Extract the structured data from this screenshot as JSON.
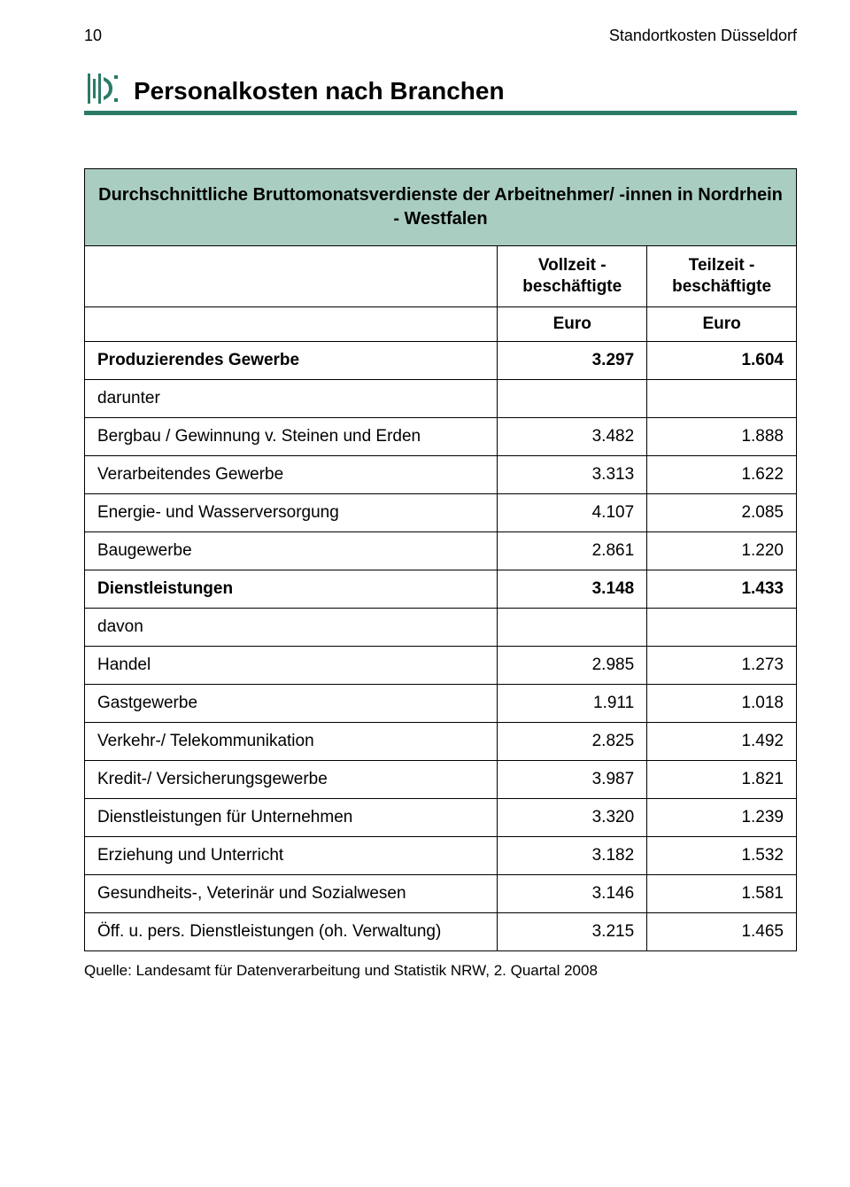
{
  "header": {
    "page_number": "10",
    "running_title": "Standortkosten Düsseldorf"
  },
  "title": "Personalkosten nach Branchen",
  "table": {
    "caption": "Durchschnittliche Bruttomonatsverdienste der Arbeitnehmer/ -innen in Nordrhein - Westfalen",
    "col_headers": {
      "vollzeit": "Vollzeit - beschäftigte",
      "teilzeit": "Teilzeit - beschäftigte"
    },
    "unit": "Euro",
    "rows": [
      {
        "label": "Produzierendes Gewerbe",
        "v": "3.297",
        "t": "1.604",
        "bold": true
      },
      {
        "label": "darunter",
        "v": "",
        "t": "",
        "bold": false
      },
      {
        "label": "Bergbau / Gewinnung v. Steinen und Erden",
        "v": "3.482",
        "t": "1.888",
        "bold": false
      },
      {
        "label": "Verarbeitendes Gewerbe",
        "v": "3.313",
        "t": "1.622",
        "bold": false
      },
      {
        "label": "Energie- und Wasserversorgung",
        "v": "4.107",
        "t": "2.085",
        "bold": false
      },
      {
        "label": "Baugewerbe",
        "v": "2.861",
        "t": "1.220",
        "bold": false
      },
      {
        "label": "Dienstleistungen",
        "v": "3.148",
        "t": "1.433",
        "bold": true
      },
      {
        "label": "davon",
        "v": "",
        "t": "",
        "bold": false
      },
      {
        "label": "Handel",
        "v": "2.985",
        "t": "1.273",
        "bold": false
      },
      {
        "label": "Gastgewerbe",
        "v": "1.911",
        "t": "1.018",
        "bold": false
      },
      {
        "label": "Verkehr-/ Telekommunikation",
        "v": "2.825",
        "t": "1.492",
        "bold": false
      },
      {
        "label": "Kredit-/ Versicherungsgewerbe",
        "v": "3.987",
        "t": "1.821",
        "bold": false
      },
      {
        "label": "Dienstleistungen für Unternehmen",
        "v": "3.320",
        "t": "1.239",
        "bold": false
      },
      {
        "label": "Erziehung und Unterricht",
        "v": "3.182",
        "t": "1.532",
        "bold": false
      },
      {
        "label": "Gesundheits-, Veterinär und Sozialwesen",
        "v": "3.146",
        "t": "1.581",
        "bold": false
      },
      {
        "label": "Öff. u. pers. Dienstleistungen (oh. Verwaltung)",
        "v": "3.215",
        "t": "1.465",
        "bold": false
      }
    ]
  },
  "source": "Quelle: Landesamt für Datenverarbeitung und Statistik NRW,  2. Quartal 2008",
  "colors": {
    "accent": "#2b7a68",
    "header_bg": "#a9cdc1",
    "text": "#000000",
    "border": "#000000",
    "page_bg": "#ffffff"
  }
}
